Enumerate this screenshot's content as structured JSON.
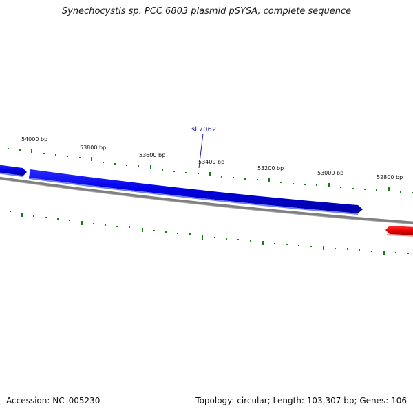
{
  "title": "Synechocystis sp. PCC 6803 plasmid pSYSA, complete sequence",
  "footer": {
    "accession": "Accession: NC_005230",
    "summary": "Topology: circular; Length: 103,307 bp; Genes: 106"
  },
  "colors": {
    "forward_feature": "#0000ee",
    "reverse_feature": "#ee0000",
    "backbone": "#808080",
    "tick": "#1a7a1a",
    "gene_label": "#1a1aa0"
  },
  "ruler_labels": [
    "54000 bp",
    "53800 bp",
    "53600 bp",
    "53400 bp",
    "53200 bp",
    "53000 bp",
    "52800 bp"
  ],
  "gene_labels": [
    "sll7062"
  ]
}
